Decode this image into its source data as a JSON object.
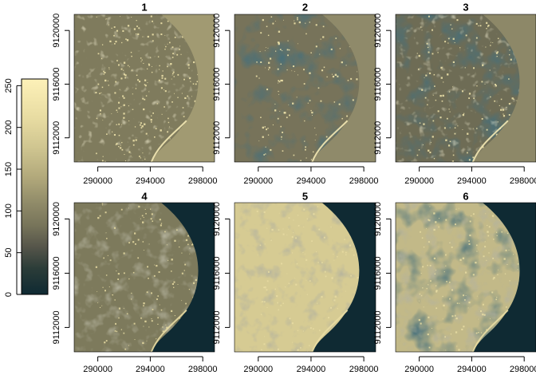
{
  "chart_data": {
    "type": "heatmap",
    "description_free": true,
    "panels": [
      {
        "title": "1",
        "style": "b1"
      },
      {
        "title": "2",
        "style": "b2"
      },
      {
        "title": "3",
        "style": "b3"
      },
      {
        "title": "4",
        "style": "b4"
      },
      {
        "title": "5",
        "style": "b5"
      },
      {
        "title": "6",
        "style": "b6"
      }
    ],
    "x_ticks": [
      290000,
      294000,
      298000
    ],
    "x_tick_labels": [
      "290000",
      "294000",
      "298000"
    ],
    "xlim": [
      288200,
      298900
    ],
    "y_ticks": [
      9112000,
      9116000,
      9120000
    ],
    "y_tick_labels": [
      "9112000",
      "9116000",
      "9120000"
    ],
    "ylim": [
      9110200,
      9121200
    ],
    "colorbar": {
      "ticks": [
        0,
        50,
        100,
        150,
        200,
        250
      ],
      "tick_labels": [
        "0",
        "50",
        "100",
        "150",
        "200",
        "250"
      ],
      "range": [
        0,
        258
      ]
    },
    "colors": {
      "dark": "#0f2a33",
      "olive": "#7d7a5c",
      "olive_light": "#8a8767",
      "tan": "#c9bf8a",
      "pale": "#fdf1b8"
    }
  }
}
